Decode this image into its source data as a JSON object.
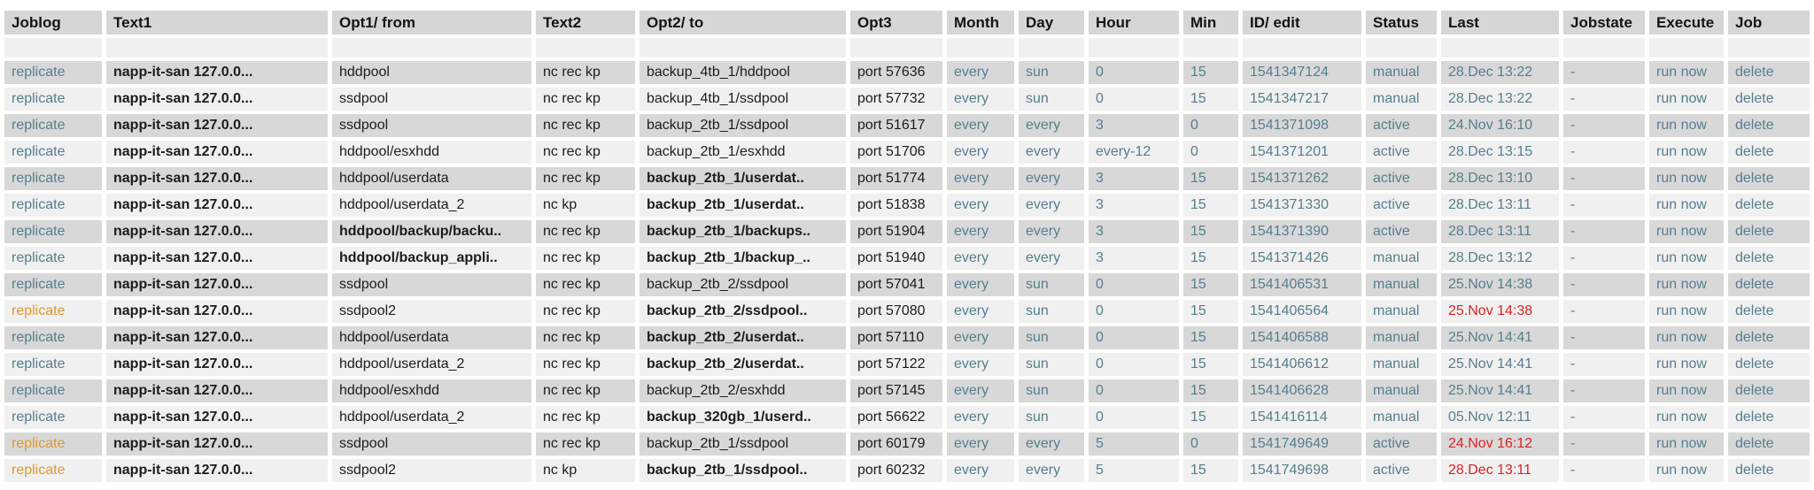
{
  "colors": {
    "link": "#567e8e",
    "alert_orange": "#dd9933",
    "alert_red": "#dd2222",
    "text": "#1c1c1c",
    "row_dark": "#d8d8d8",
    "row_light": "#f0f0f0"
  },
  "table": {
    "columns": {
      "joblog": "Joblog",
      "text1": "Text1",
      "opt1": "Opt1/ from",
      "text2": "Text2",
      "opt2": "Opt2/ to",
      "opt3": "Opt3",
      "month": "Month",
      "day": "Day",
      "hour": "Hour",
      "min": "Min",
      "id": "ID/ edit",
      "status": "Status",
      "last": "Last",
      "jobstate": "Jobstate",
      "execute": "Execute",
      "job": "Job"
    },
    "rows": [
      {
        "joblog": "replicate",
        "joblog_alert": false,
        "text1": "napp-it-san 127.0.0...",
        "opt1": "hddpool",
        "text2": "nc rec kp",
        "opt2": "backup_4tb_1/hddpool",
        "opt3": "port 57636",
        "month": "every",
        "day": "sun",
        "hour": "0",
        "min": "15",
        "id": "1541347124",
        "status": "manual",
        "last": "28.Dec 13:22",
        "last_alert": false,
        "jobstate": "-",
        "execute": "run now",
        "job": "delete"
      },
      {
        "joblog": "replicate",
        "joblog_alert": false,
        "text1": "napp-it-san 127.0.0...",
        "opt1": "ssdpool",
        "text2": "nc rec kp",
        "opt2": "backup_4tb_1/ssdpool",
        "opt3": "port 57732",
        "month": "every",
        "day": "sun",
        "hour": "0",
        "min": "15",
        "id": "1541347217",
        "status": "manual",
        "last": "28.Dec 13:22",
        "last_alert": false,
        "jobstate": "-",
        "execute": "run now",
        "job": "delete"
      },
      {
        "joblog": "replicate",
        "joblog_alert": false,
        "text1": "napp-it-san 127.0.0...",
        "opt1": "ssdpool",
        "text2": "nc rec kp",
        "opt2": "backup_2tb_1/ssdpool",
        "opt3": "port 51617",
        "month": "every",
        "day": "every",
        "hour": "3",
        "min": "0",
        "id": "1541371098",
        "status": "active",
        "last": "24.Nov 16:10",
        "last_alert": false,
        "jobstate": "-",
        "execute": "run now",
        "job": "delete"
      },
      {
        "joblog": "replicate",
        "joblog_alert": false,
        "text1": "napp-it-san 127.0.0...",
        "opt1": "hddpool/esxhdd",
        "text2": "nc rec kp",
        "opt2": "backup_2tb_1/esxhdd",
        "opt3": "port 51706",
        "month": "every",
        "day": "every",
        "hour": "every-12",
        "min": "0",
        "id": "1541371201",
        "status": "active",
        "last": "28.Dec 13:15",
        "last_alert": false,
        "jobstate": "-",
        "execute": "run now",
        "job": "delete"
      },
      {
        "joblog": "replicate",
        "joblog_alert": false,
        "text1": "napp-it-san 127.0.0...",
        "opt1": "hddpool/userdata",
        "text2": "nc rec kp",
        "opt2": "backup_2tb_1/userdat..",
        "opt3": "port 51774",
        "month": "every",
        "day": "every",
        "hour": "3",
        "min": "15",
        "id": "1541371262",
        "status": "active",
        "last": "28.Dec 13:10",
        "last_alert": false,
        "jobstate": "-",
        "execute": "run now",
        "job": "delete"
      },
      {
        "joblog": "replicate",
        "joblog_alert": false,
        "text1": "napp-it-san 127.0.0...",
        "opt1": "hddpool/userdata_2",
        "text2": "nc kp",
        "opt2": "backup_2tb_1/userdat..",
        "opt3": "port 51838",
        "month": "every",
        "day": "every",
        "hour": "3",
        "min": "15",
        "id": "1541371330",
        "status": "active",
        "last": "28.Dec 13:11",
        "last_alert": false,
        "jobstate": "-",
        "execute": "run now",
        "job": "delete"
      },
      {
        "joblog": "replicate",
        "joblog_alert": false,
        "text1": "napp-it-san 127.0.0...",
        "opt1": "hddpool/backup/backu..",
        "text2": "nc rec kp",
        "opt2": "backup_2tb_1/backups..",
        "opt3": "port 51904",
        "month": "every",
        "day": "every",
        "hour": "3",
        "min": "15",
        "id": "1541371390",
        "status": "active",
        "last": "28.Dec 13:11",
        "last_alert": false,
        "jobstate": "-",
        "execute": "run now",
        "job": "delete"
      },
      {
        "joblog": "replicate",
        "joblog_alert": false,
        "text1": "napp-it-san 127.0.0...",
        "opt1": "hddpool/backup_appli..",
        "text2": "nc rec kp",
        "opt2": "backup_2tb_1/backup_..",
        "opt3": "port 51940",
        "month": "every",
        "day": "every",
        "hour": "3",
        "min": "15",
        "id": "1541371426",
        "status": "manual",
        "last": "28.Dec 13:12",
        "last_alert": false,
        "jobstate": "-",
        "execute": "run now",
        "job": "delete"
      },
      {
        "joblog": "replicate",
        "joblog_alert": false,
        "text1": "napp-it-san 127.0.0...",
        "opt1": "ssdpool",
        "text2": "nc rec kp",
        "opt2": "backup_2tb_2/ssdpool",
        "opt3": "port 57041",
        "month": "every",
        "day": "sun",
        "hour": "0",
        "min": "15",
        "id": "1541406531",
        "status": "manual",
        "last": "25.Nov 14:38",
        "last_alert": false,
        "jobstate": "-",
        "execute": "run now",
        "job": "delete"
      },
      {
        "joblog": "replicate",
        "joblog_alert": true,
        "text1": "napp-it-san 127.0.0...",
        "opt1": "ssdpool2",
        "text2": "nc rec kp",
        "opt2": "backup_2tb_2/ssdpool..",
        "opt3": "port 57080",
        "month": "every",
        "day": "sun",
        "hour": "0",
        "min": "15",
        "id": "1541406564",
        "status": "manual",
        "last": "25.Nov 14:38",
        "last_alert": true,
        "jobstate": "-",
        "execute": "run now",
        "job": "delete"
      },
      {
        "joblog": "replicate",
        "joblog_alert": false,
        "text1": "napp-it-san 127.0.0...",
        "opt1": "hddpool/userdata",
        "text2": "nc rec kp",
        "opt2": "backup_2tb_2/userdat..",
        "opt3": "port 57110",
        "month": "every",
        "day": "sun",
        "hour": "0",
        "min": "15",
        "id": "1541406588",
        "status": "manual",
        "last": "25.Nov 14:41",
        "last_alert": false,
        "jobstate": "-",
        "execute": "run now",
        "job": "delete"
      },
      {
        "joblog": "replicate",
        "joblog_alert": false,
        "text1": "napp-it-san 127.0.0...",
        "opt1": "hddpool/userdata_2",
        "text2": "nc rec kp",
        "opt2": "backup_2tb_2/userdat..",
        "opt3": "port 57122",
        "month": "every",
        "day": "sun",
        "hour": "0",
        "min": "15",
        "id": "1541406612",
        "status": "manual",
        "last": "25.Nov 14:41",
        "last_alert": false,
        "jobstate": "-",
        "execute": "run now",
        "job": "delete"
      },
      {
        "joblog": "replicate",
        "joblog_alert": false,
        "text1": "napp-it-san 127.0.0...",
        "opt1": "hddpool/esxhdd",
        "text2": "nc rec kp",
        "opt2": "backup_2tb_2/esxhdd",
        "opt3": "port 57145",
        "month": "every",
        "day": "sun",
        "hour": "0",
        "min": "15",
        "id": "1541406628",
        "status": "manual",
        "last": "25.Nov 14:41",
        "last_alert": false,
        "jobstate": "-",
        "execute": "run now",
        "job": "delete"
      },
      {
        "joblog": "replicate",
        "joblog_alert": false,
        "text1": "napp-it-san 127.0.0...",
        "opt1": "hddpool/userdata_2",
        "text2": "nc rec kp",
        "opt2": "backup_320gb_1/userd..",
        "opt3": "port 56622",
        "month": "every",
        "day": "sun",
        "hour": "0",
        "min": "15",
        "id": "1541416114",
        "status": "manual",
        "last": "05.Nov 12:11",
        "last_alert": false,
        "jobstate": "-",
        "execute": "run now",
        "job": "delete"
      },
      {
        "joblog": "replicate",
        "joblog_alert": true,
        "text1": "napp-it-san 127.0.0...",
        "opt1": "ssdpool",
        "text2": "nc rec kp",
        "opt2": "backup_2tb_1/ssdpool",
        "opt3": "port 60179",
        "month": "every",
        "day": "every",
        "hour": "5",
        "min": "0",
        "id": "1541749649",
        "status": "active",
        "last": "24.Nov 16:12",
        "last_alert": true,
        "jobstate": "-",
        "execute": "run now",
        "job": "delete"
      },
      {
        "joblog": "replicate",
        "joblog_alert": true,
        "text1": "napp-it-san 127.0.0...",
        "opt1": "ssdpool2",
        "text2": "nc kp",
        "opt2": "backup_2tb_1/ssdpool..",
        "opt3": "port 60232",
        "month": "every",
        "day": "every",
        "hour": "5",
        "min": "15",
        "id": "1541749698",
        "status": "active",
        "last": "28.Dec 13:11",
        "last_alert": true,
        "jobstate": "-",
        "execute": "run now",
        "job": "delete"
      }
    ]
  }
}
